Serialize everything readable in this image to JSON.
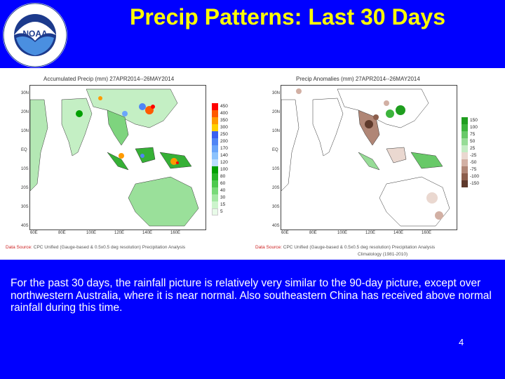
{
  "title": "Precip Patterns: Last 30 Days",
  "logo": {
    "center_text": "NOAA",
    "ring_text_top": "NATIONAL OCEANIC AND ATMOSPHERIC ADMINISTRATION",
    "ring_text_bottom": "U.S. DEPARTMENT OF COMMERCE"
  },
  "panels": [
    {
      "title": "Accumulated Precip (mm) 27APR2014--26MAY2014",
      "legend": {
        "levels": [
          "450",
          "400",
          "350",
          "300",
          "250",
          "200",
          "170",
          "140",
          "120",
          "100",
          "80",
          "60",
          "40",
          "30",
          "15",
          "5"
        ],
        "colors": [
          "#ff0000",
          "#ff5a00",
          "#ff9a00",
          "#ffd000",
          "#3a5ff0",
          "#4f85f5",
          "#6aa5fa",
          "#8cc3fd",
          "#b9ddfe",
          "#00a000",
          "#27b527",
          "#4ec94e",
          "#79da79",
          "#a5e8a5",
          "#ccf4cc",
          "#e8fbe8"
        ]
      },
      "source_key": "Data Source:",
      "source": "CPC Unified (Gauge-based & 0.5x0.5 deg resolution) Precipitation Analysis"
    },
    {
      "title": "Precip Anomalies (mm) 27APR2014--26MAY2014",
      "legend": {
        "levels": [
          "150",
          "100",
          "75",
          "50",
          "25",
          "-25",
          "-50",
          "-75",
          "-100",
          "-150"
        ],
        "colors": [
          "#1f9e1f",
          "#3cb43c",
          "#68c968",
          "#96dc96",
          "#c4ecc4",
          "#ead8d0",
          "#d2b0a4",
          "#b08676",
          "#8c5e4c",
          "#5e3a2c"
        ]
      },
      "source_key": "Data Source:",
      "source": "CPC Unified (Gauge-based & 0.5x0.5 deg resolution) Precipitation Analysis",
      "source_line2": "Climatology (1981-2010)"
    }
  ],
  "axes": {
    "lat_labels": [
      "30N",
      "20N",
      "10N",
      "EQ",
      "10S",
      "20S",
      "30S",
      "40S"
    ],
    "lon_labels": [
      "60E",
      "80E",
      "100E",
      "120E",
      "140E",
      "160E"
    ]
  },
  "body_text": "For the past 30 days, the rainfall picture is relatively very similar to the 90-day picture, except over northwestern Australia, where it is near normal. Also southeastern China has received above normal rainfall during this time.",
  "page_number": "4"
}
